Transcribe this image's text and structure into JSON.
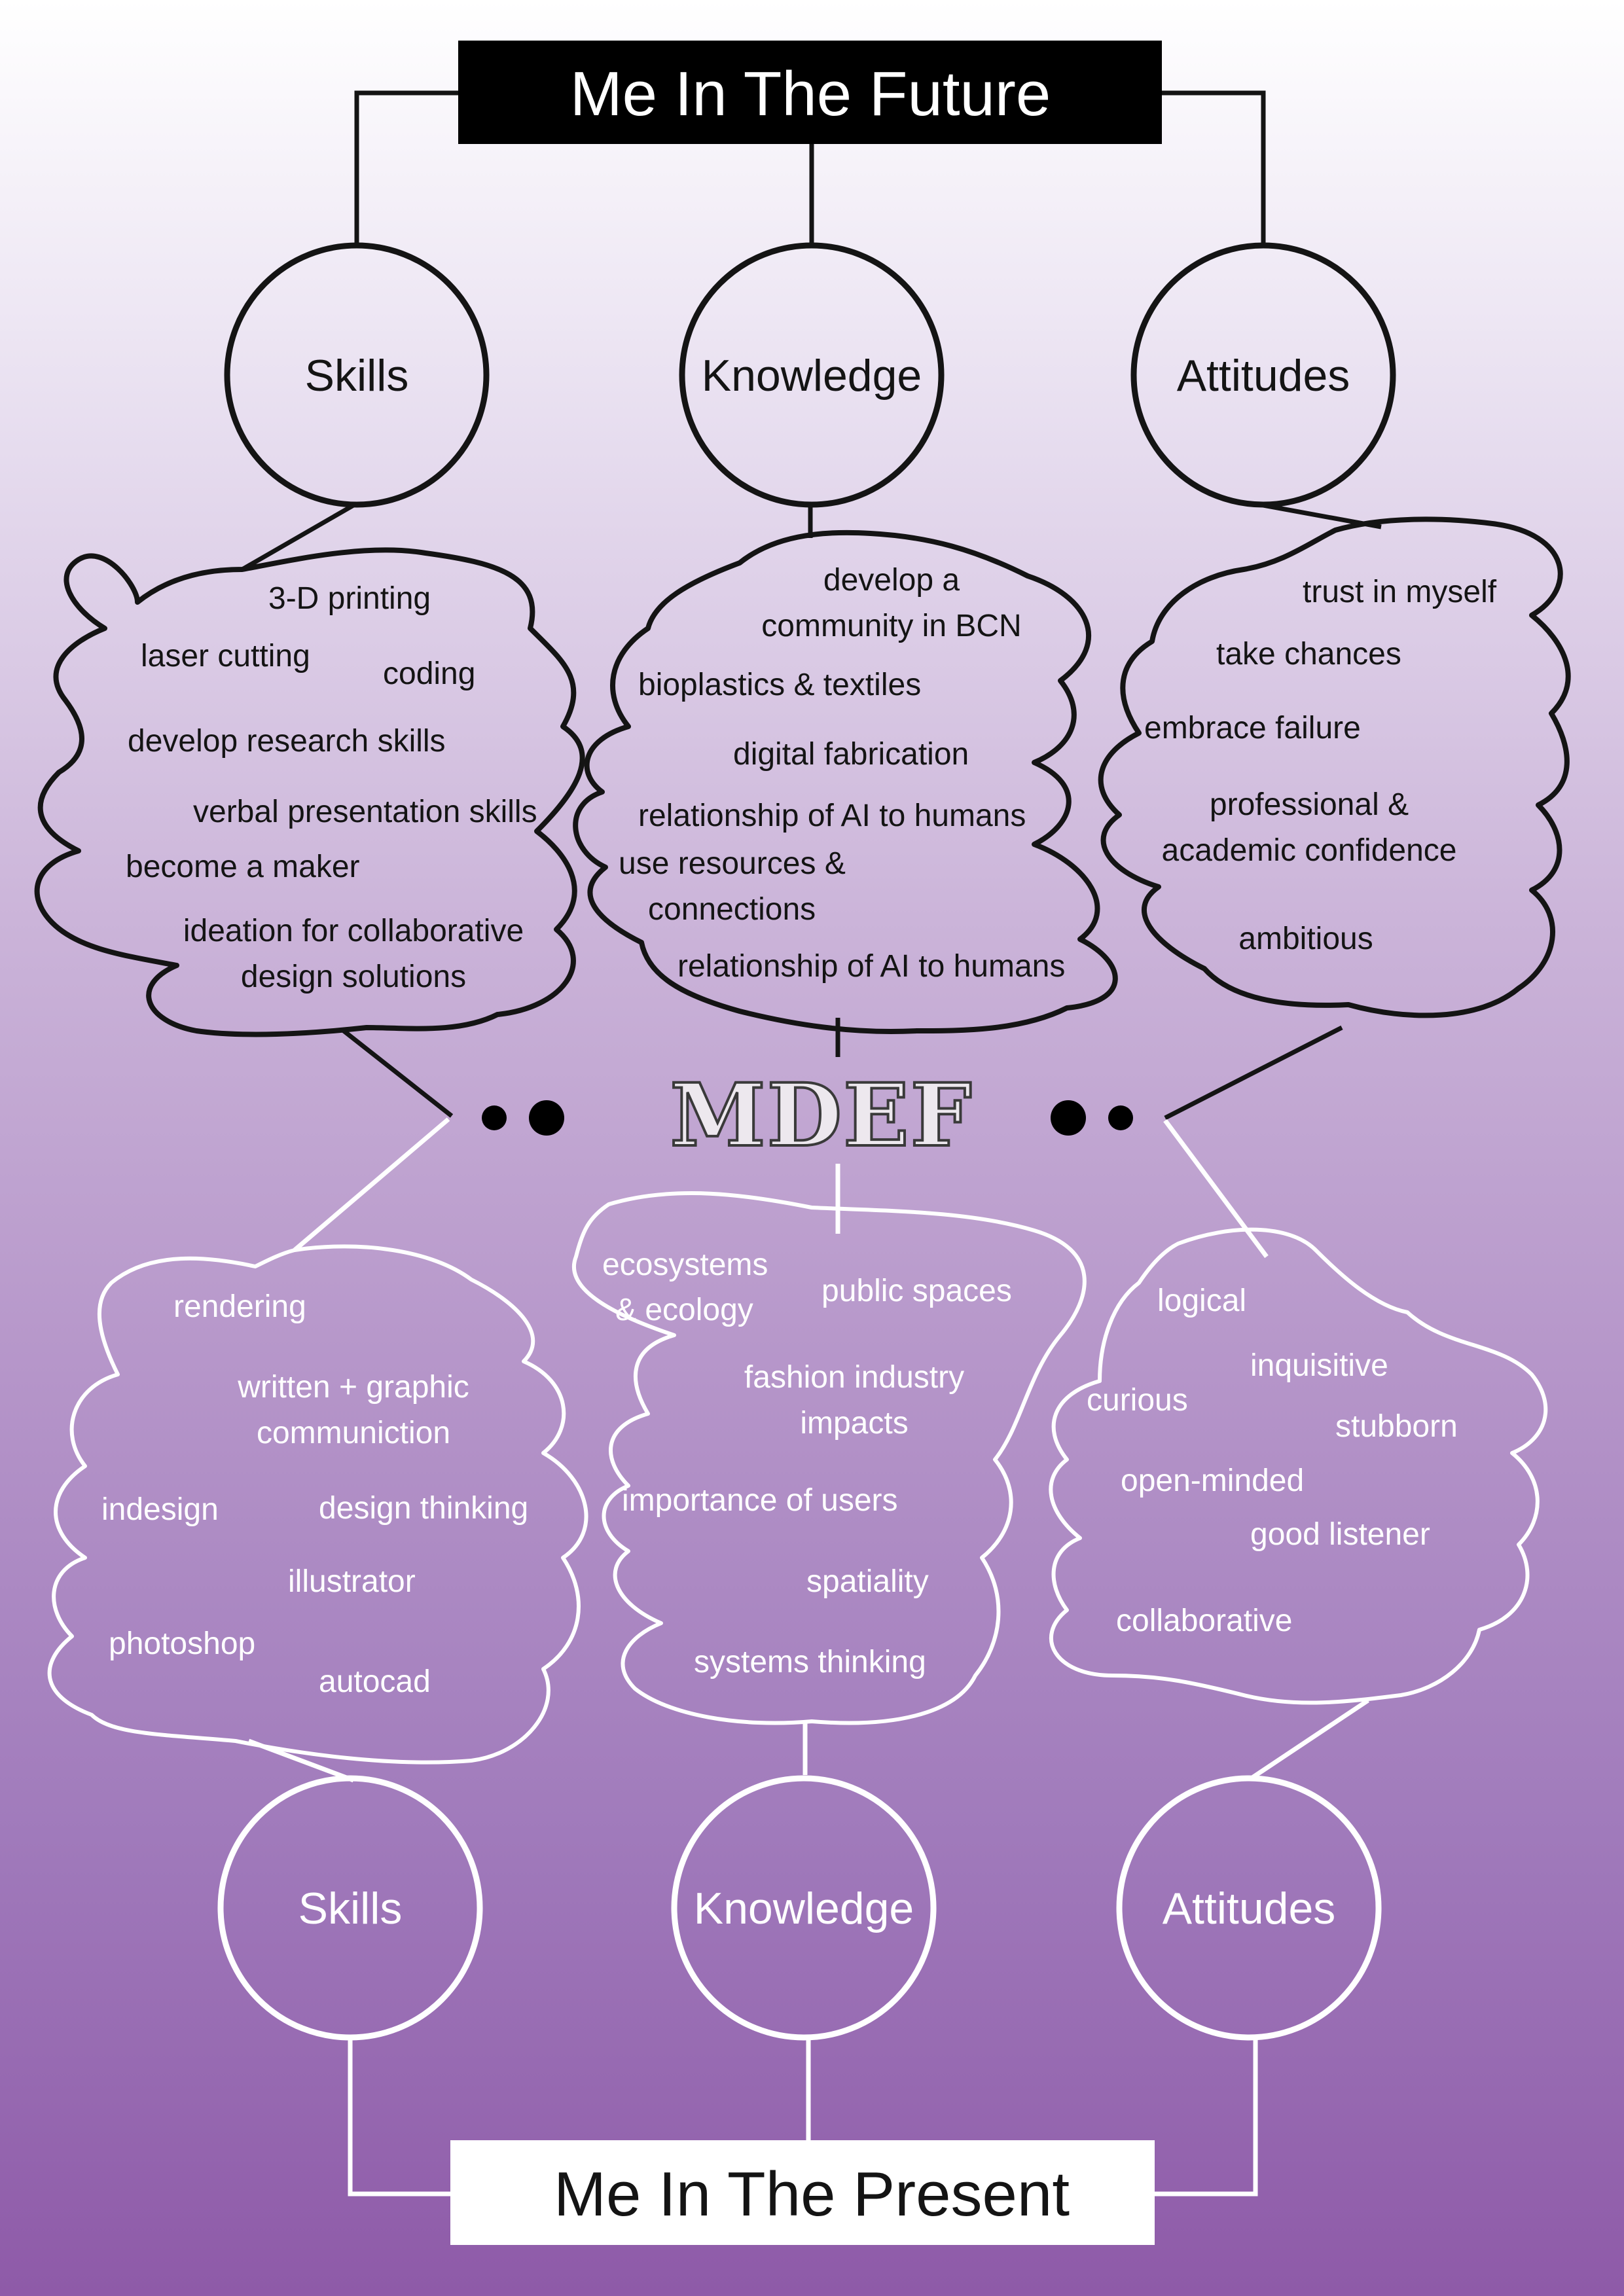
{
  "future": {
    "title": "Me In The Future",
    "groups": [
      {
        "label": "Skills",
        "items": [
          "3-D printing",
          "laser cutting",
          "coding",
          "develop research skills",
          "verbal presentation skills",
          "become a maker",
          "ideation for collaborative",
          "design solutions"
        ]
      },
      {
        "label": "Knowledge",
        "items": [
          "develop a",
          "community in BCN",
          "bioplastics & textiles",
          "digital fabrication",
          "relationship of AI to humans",
          "use resources &",
          "connections",
          "relationship of AI to humans"
        ]
      },
      {
        "label": "Attitudes",
        "items": [
          "trust in myself",
          "take chances",
          "embrace failure",
          "professional &",
          "academic confidence",
          "ambitious"
        ]
      }
    ]
  },
  "center": {
    "label": "MDEF"
  },
  "present": {
    "title": "Me In The Present",
    "groups": [
      {
        "label": "Skills",
        "items": [
          "rendering",
          "written + graphic",
          "communiction",
          "indesign",
          "design thinking",
          "illustrator",
          "photoshop",
          "autocad"
        ]
      },
      {
        "label": "Knowledge",
        "items": [
          "ecosystems",
          "& ecology",
          "public spaces",
          "fashion industry",
          "impacts",
          "importance of users",
          "spatiality",
          "systems thinking"
        ]
      },
      {
        "label": "Attitudes",
        "items": [
          "logical",
          "inquisitive",
          "curious",
          "stubborn",
          "open-minded",
          "good listener",
          "collaborative"
        ]
      }
    ]
  },
  "colors": {
    "top_ink": "#141414",
    "bottom_ink": "#ffffff",
    "gradient_top": "#ffffff",
    "gradient_bottom": "#8e5aa8"
  }
}
